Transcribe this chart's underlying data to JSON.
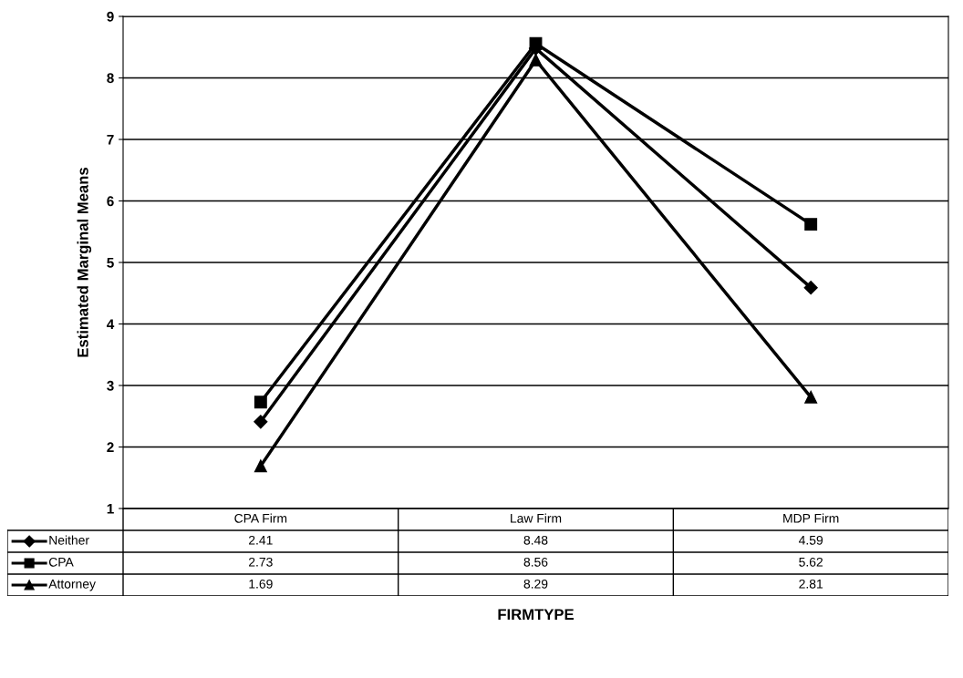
{
  "chart_data": {
    "type": "line",
    "annotations": [
      "FIRMTYPE"
    ],
    "ylabel": "Estimated Marginal Means",
    "categories": [
      "CPA Firm",
      "Law Firm",
      "MDP Firm"
    ],
    "series": [
      {
        "name": "Neither",
        "color": "#000000",
        "marker": "diamond",
        "values": [
          2.41,
          8.48,
          4.59
        ]
      },
      {
        "name": "CPA",
        "color": "#000000",
        "marker": "square",
        "values": [
          2.73,
          8.56,
          5.62
        ]
      },
      {
        "name": "Attorney",
        "color": "#000000",
        "marker": "triangle",
        "values": [
          1.69,
          8.29,
          2.81
        ]
      }
    ],
    "ylim": [
      1,
      9
    ],
    "yticks": [
      1,
      2,
      3,
      4,
      5,
      6,
      7,
      8,
      9
    ],
    "grid": "y",
    "data_labels": true,
    "legend": "bottom left",
    "line_style": "solid"
  }
}
